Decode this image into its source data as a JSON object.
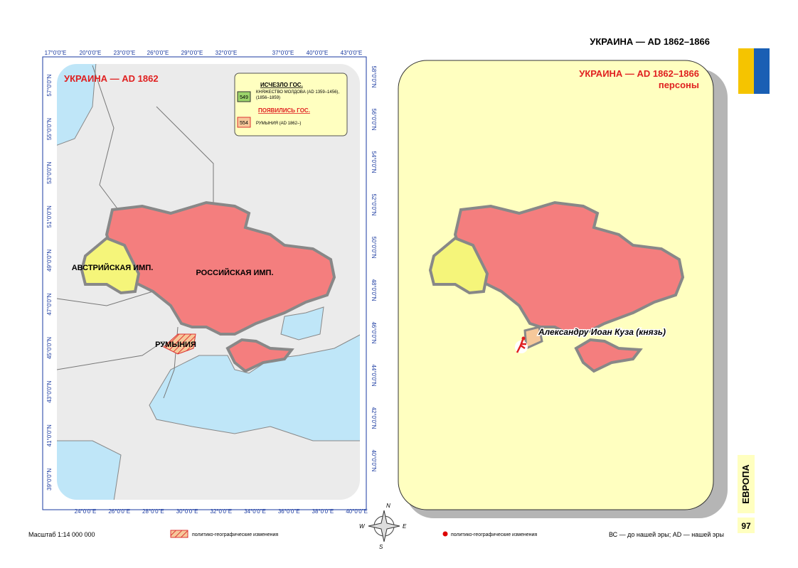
{
  "header": {
    "title": "УКРАИНА — AD 1862–1866"
  },
  "left_map": {
    "title": "УКРАИНА — AD 1862",
    "legend": {
      "vanished_heading": "ИСЧЕЗЛО ГОС.",
      "vanished_code": "549",
      "vanished_name": "КНЯЖЕСТВО МОЛДОВА (AD 1359–1456),(1856–1859)",
      "appeared_heading": "ПОЯВИЛИСЬ ГОС.",
      "appeared_code": "554",
      "appeared_name": "РУМЫНИЯ (AD 1862–)"
    },
    "labels": [
      "АВСТРИЙСКАЯ ИМП.",
      "РОССИЙСКАЯ ИМП.",
      "РУМЫНИЯ"
    ],
    "top_ticks": [
      "17°0'0\"E",
      "20°0'0\"E",
      "23°0'0\"E",
      "26°0'0\"E",
      "29°0'0\"E",
      "32°0'0\"E",
      "37°0'0\"E",
      "40°0'0\"E",
      "43°0'0\"E"
    ],
    "bottom_ticks": [
      "24°0'0\"E",
      "26°0'0\"E",
      "28°0'0\"E",
      "30°0'0\"E",
      "32°0'0\"E",
      "34°0'0\"E",
      "36°0'0\"E",
      "38°0'0\"E",
      "40°0'0\"E"
    ],
    "left_ticks": [
      "57°0'0\"N",
      "55°0'0\"N",
      "53°0'0\"N",
      "51°0'0\"N",
      "49°0'0\"N",
      "47°0'0\"N",
      "45°0'0\"N",
      "43°0'0\"N",
      "41°0'0\"N",
      "39°0'0\"N"
    ],
    "right_ticks": [
      "58°0'0\"N",
      "56°0'0\"N",
      "54°0'0\"N",
      "52°0'0\"N",
      "50°0'0\"N",
      "48°0'0\"N",
      "46°0'0\"N",
      "44°0'0\"N",
      "42°0'0\"N",
      "40°0'0\"N"
    ],
    "scale": "Масштаб 1:14 000 000",
    "changes_note": "политико-географические изменения"
  },
  "right_map": {
    "title": "УКРАИНА — AD 1862–1866",
    "subtitle": "персоны",
    "person": "Александру Иоан Куза (князь)",
    "changes_note": "политико-географические изменения"
  },
  "compass": [
    "N",
    "W",
    "E",
    "S"
  ],
  "footer": {
    "era_note": "ВС — до нашей эры; AD — нашей эры",
    "section": "ЕВРОПА",
    "page": "97"
  }
}
